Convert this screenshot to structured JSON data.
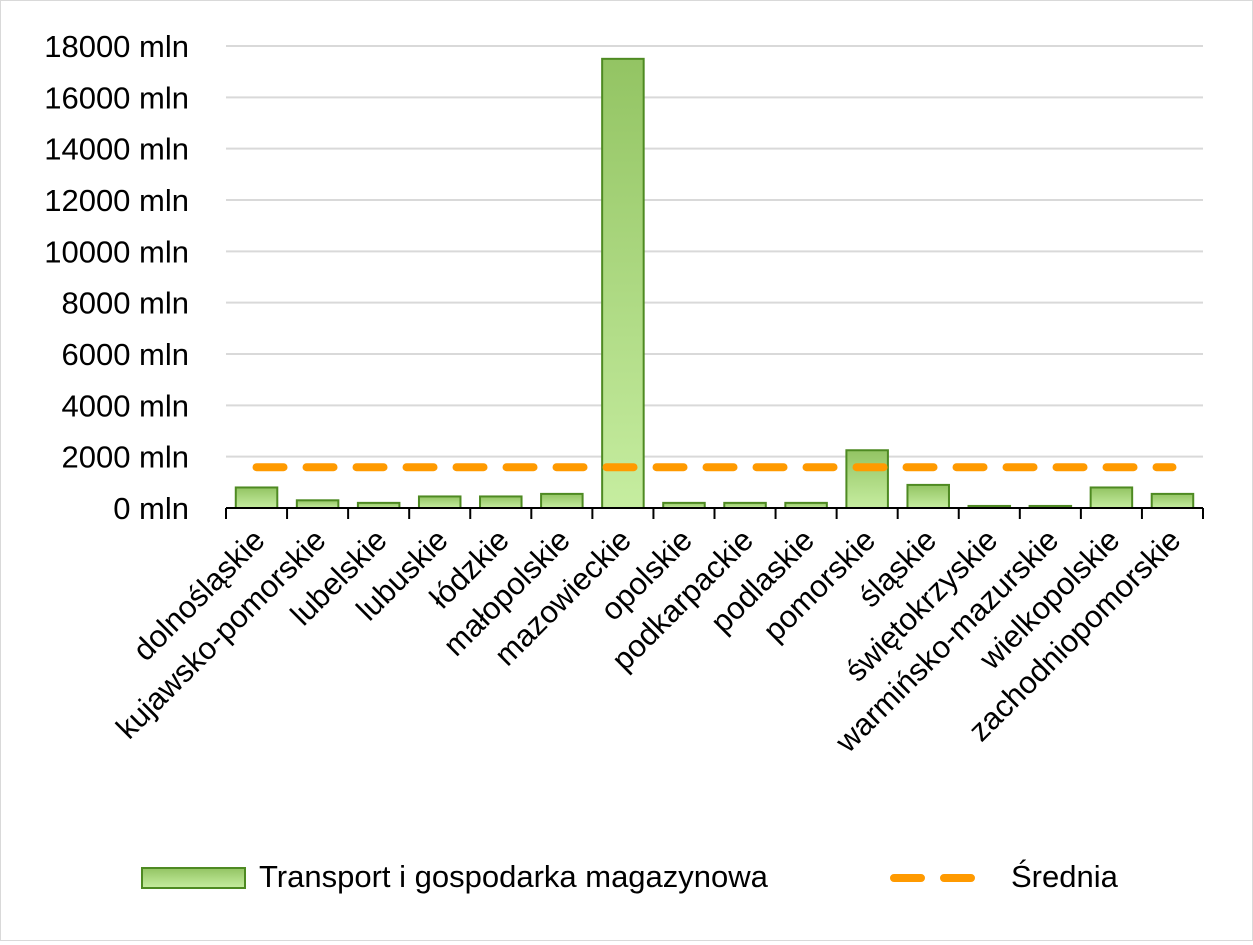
{
  "chart_data": {
    "type": "bar",
    "title": "",
    "xlabel": "",
    "ylabel": "",
    "ylim": [
      0,
      18000
    ],
    "y_ticks": [
      0,
      2000,
      4000,
      6000,
      8000,
      10000,
      12000,
      14000,
      16000,
      18000
    ],
    "y_tick_suffix": " mln",
    "grid": true,
    "legend_position": "bottom",
    "categories": [
      "dolnośląskie",
      "kujawsko-pomorskie",
      "lubelskie",
      "lubuskie",
      "łódzkie",
      "małopolskie",
      "mazowieckie",
      "opolskie",
      "podkarpackie",
      "podlaskie",
      "pomorskie",
      "śląskie",
      "świętokrzyskie",
      "warmińsko-mazurskie",
      "wielkopolskie",
      "zachodniopomorskie"
    ],
    "series": [
      {
        "name": "Transport i gospodarka magazynowa",
        "kind": "bar",
        "color": "#77b03e",
        "values": [
          800,
          300,
          200,
          450,
          450,
          550,
          17500,
          200,
          200,
          200,
          2250,
          900,
          80,
          80,
          800,
          550
        ]
      },
      {
        "name": "Średnia",
        "kind": "dashed-line",
        "color": "#ff9a00",
        "values": [
          1590,
          1590,
          1590,
          1590,
          1590,
          1590,
          1590,
          1590,
          1590,
          1590,
          1590,
          1590,
          1590,
          1590,
          1590,
          1590
        ]
      }
    ]
  }
}
